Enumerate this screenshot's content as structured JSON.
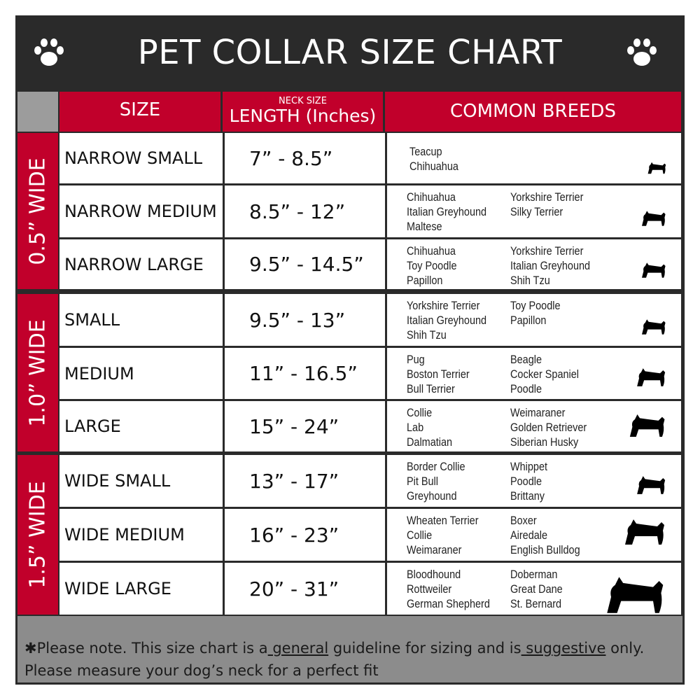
{
  "title": "PET COLLAR SIZE CHART",
  "header": {
    "size": "SIZE",
    "neck_size": "NECK SIZE",
    "length": "LENGTH (Inches)",
    "breeds": "COMMON BREEDS"
  },
  "groups": [
    "0.5” WIDE",
    "1.0” WIDE",
    "1.5” WIDE"
  ],
  "rows": [
    {
      "size": "NARROW SMALL",
      "length": "7” - 8.5”",
      "breeds_a": [
        "Teacup",
        "Chihuahua"
      ],
      "breeds_b": []
    },
    {
      "size": "NARROW MEDIUM",
      "length": "8.5” - 12”",
      "breeds_a": [
        "Chihuahua",
        "Italian Greyhound",
        "Maltese"
      ],
      "breeds_b": [
        "Yorkshire Terrier",
        "Silky Terrier"
      ]
    },
    {
      "size": "NARROW LARGE",
      "length": "9.5” - 14.5”",
      "breeds_a": [
        "Chihuahua",
        "Toy Poodle",
        "Papillon"
      ],
      "breeds_b": [
        "Yorkshire Terrier",
        "Italian Greyhound",
        "Shih Tzu"
      ]
    },
    {
      "size": "SMALL",
      "length": "9.5” - 13”",
      "breeds_a": [
        "Yorkshire Terrier",
        "Italian Greyhound",
        "Shih Tzu"
      ],
      "breeds_b": [
        "Toy Poodle",
        "Papillon"
      ]
    },
    {
      "size": "MEDIUM",
      "length": "11” - 16.5”",
      "breeds_a": [
        "Pug",
        "Boston Terrier",
        "Bull Terrier"
      ],
      "breeds_b": [
        "Beagle",
        "Cocker Spaniel",
        "Poodle"
      ]
    },
    {
      "size": "LARGE",
      "length": "15” - 24”",
      "breeds_a": [
        "Collie",
        "Lab",
        "Dalmatian"
      ],
      "breeds_b": [
        "Weimaraner",
        "Golden Retriever",
        "Siberian Husky"
      ]
    },
    {
      "size": "WIDE SMALL",
      "length": "13” - 17”",
      "breeds_a": [
        "Border Collie",
        "Pit Bull",
        "Greyhound"
      ],
      "breeds_b": [
        "Whippet",
        "Poodle",
        "Brittany"
      ]
    },
    {
      "size": "WIDE MEDIUM",
      "length": "16” - 23”",
      "breeds_a": [
        "Wheaten Terrier",
        "Collie",
        "Weimaraner"
      ],
      "breeds_b": [
        "Boxer",
        "Airedale",
        "English Bulldog"
      ]
    },
    {
      "size": "WIDE LARGE",
      "length": "20” - 31”",
      "breeds_a": [
        "Bloodhound",
        "Rottweiler",
        "German Shepherd"
      ],
      "breeds_b": [
        "Doberman",
        "Great Dane",
        "St. Bernard"
      ]
    }
  ],
  "footer": {
    "p1": "✱Please note. This size chart is a",
    "general": " general",
    "p2": " guideline for sizing and is",
    "suggestive": " suggestive",
    "p3": " only.",
    "line2": "Please measure your dog’s neck for a perfect fit"
  },
  "colors": {
    "red": "#c1002b",
    "dark": "#2a2a2a",
    "gray": "#8c8c8c"
  }
}
